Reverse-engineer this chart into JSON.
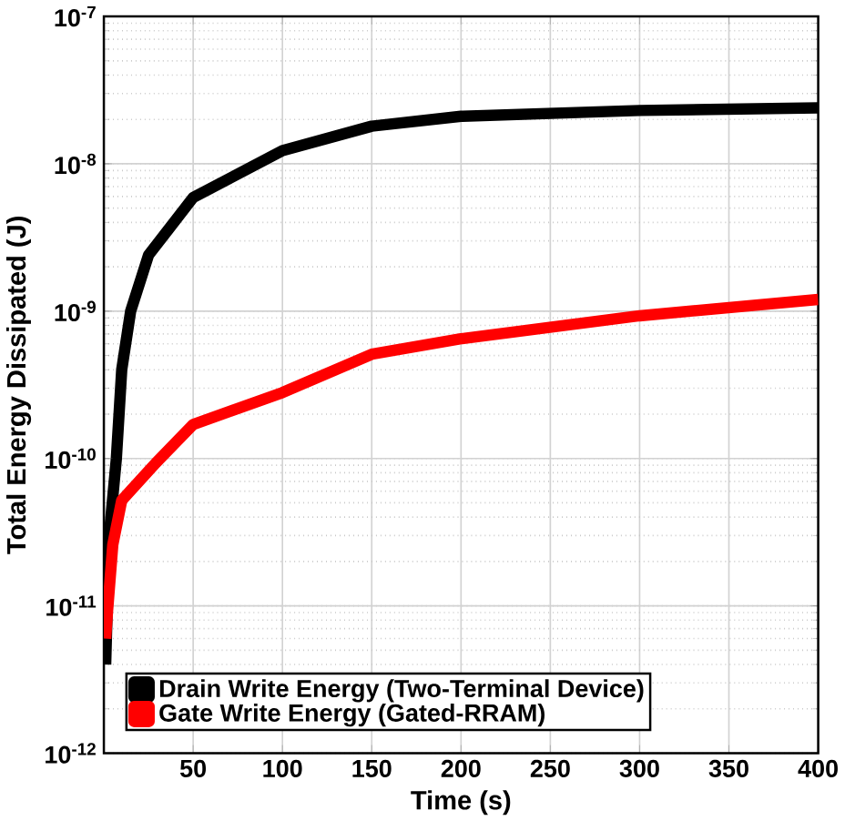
{
  "chart_data": {
    "type": "line",
    "xlabel": "Time (s)",
    "ylabel": "Total Energy Dissipated (J)",
    "log": "y",
    "grid": true,
    "legend": "bottom left",
    "xlim": [
      0,
      400
    ],
    "xticks": [
      50,
      100,
      150,
      200,
      250,
      300,
      350,
      400
    ],
    "ylim": [
      1e-12,
      1e-07
    ],
    "yticks": [
      {
        "value": 1e-12,
        "label": "10$^{-12}$"
      },
      {
        "value": 1e-11,
        "label": "10$^{-11}$"
      },
      {
        "value": 1e-10,
        "label": "10$^{-10}$"
      },
      {
        "value": 1e-09,
        "label": "10$^{-9}$"
      },
      {
        "value": 1e-08,
        "label": "10$^{-8}$"
      },
      {
        "value": 1e-07,
        "label": "10$^{-7}$"
      }
    ],
    "series": [
      {
        "name": "Drain Write Energy (Two-Terminal Device)",
        "color": "#000000",
        "x": [
          1,
          3,
          7,
          10,
          15,
          25,
          50,
          100,
          150,
          200,
          300,
          400
        ],
        "values": [
          4e-12,
          3e-11,
          1e-10,
          4e-10,
          1e-09,
          2.4e-09,
          5.9e-09,
          1.23e-08,
          1.8e-08,
          2.1e-08,
          2.3e-08,
          2.4e-08
        ]
      },
      {
        "name": "Gate Write Energy (Gated-RRAM)",
        "color": "#ff0000",
        "x": [
          1,
          2,
          5,
          10,
          29,
          50,
          100,
          150,
          200,
          300,
          400
        ],
        "values": [
          6e-12,
          9e-12,
          2.6e-11,
          5.2e-11,
          9.3e-11,
          1.7e-10,
          2.8e-10,
          5.1e-10,
          6.5e-10,
          9.3e-10,
          1.2e-09
        ]
      }
    ]
  }
}
